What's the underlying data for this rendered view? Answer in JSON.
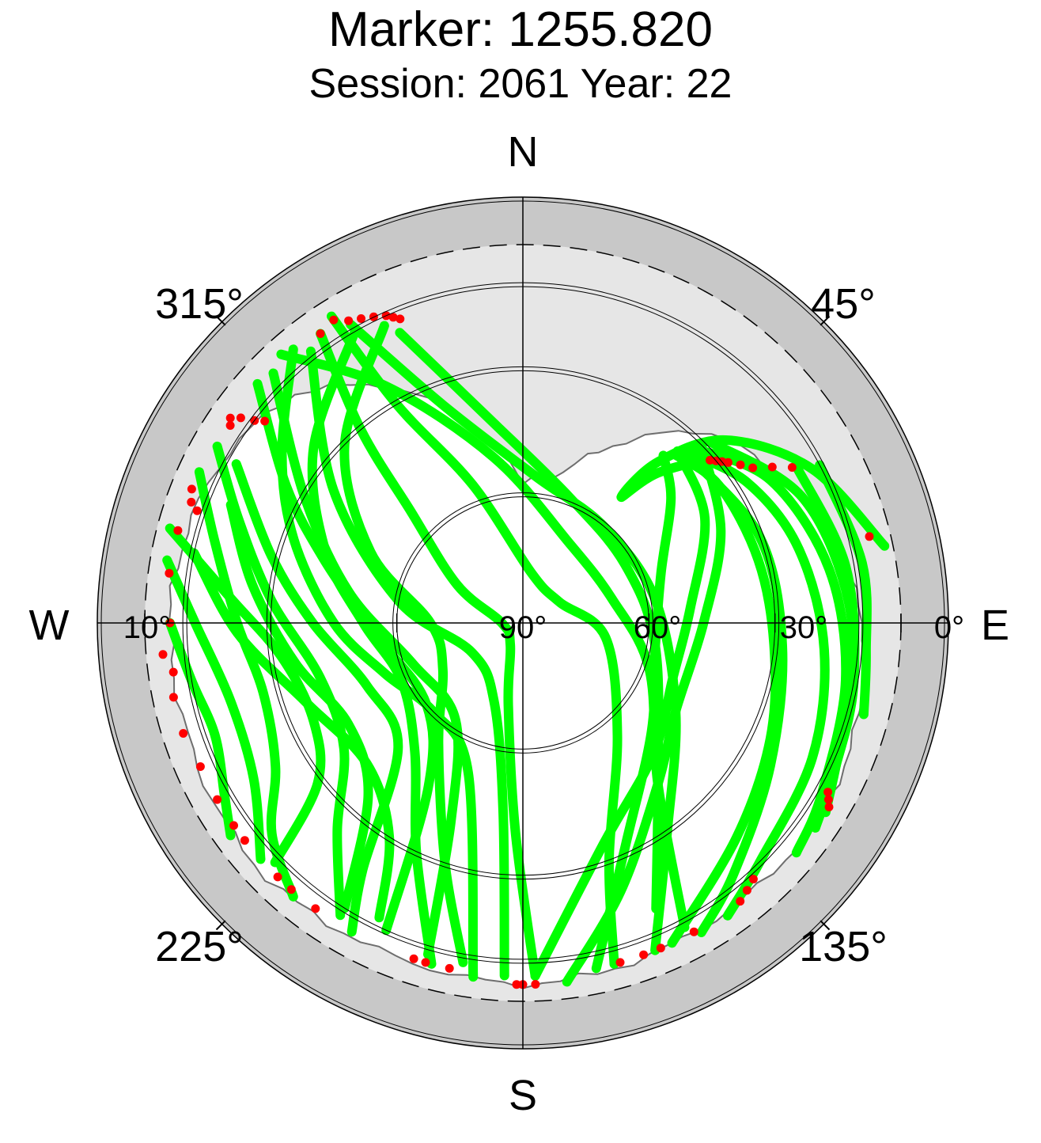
{
  "title": "Marker: 1255.820",
  "subtitle": "Session: 2061 Year: 22",
  "chart_data": {
    "type": "scatter",
    "projection": "polar skyplot (azimuth / elevation)",
    "cardinal_labels": [
      "N",
      "E",
      "S",
      "W"
    ],
    "azimuth_labels": [
      "45°",
      "135°",
      "225°",
      "315°"
    ],
    "elevation_labels": [
      "0°",
      "10°",
      "30°",
      "60°",
      "90°"
    ],
    "elevation_circles_deg": [
      10,
      30,
      60
    ],
    "elevation_cutoff_deg": 10,
    "colors": {
      "track": "#00ff00",
      "endpoint": "#ff0000",
      "obstruction_outer": "#c8c8c8",
      "obstruction_inner": "#e6e6e6",
      "mask_outline": "#6e6e6e"
    },
    "obstruction_mask": [
      [
        0,
        57
      ],
      [
        15,
        53
      ],
      [
        30,
        40
      ],
      [
        45,
        26
      ],
      [
        60,
        20
      ],
      [
        75,
        14
      ],
      [
        90,
        9
      ],
      [
        105,
        7
      ],
      [
        120,
        6
      ],
      [
        135,
        6
      ],
      [
        150,
        6
      ],
      [
        165,
        5
      ],
      [
        180,
        4
      ],
      [
        195,
        5
      ],
      [
        210,
        5
      ],
      [
        225,
        4
      ],
      [
        240,
        5
      ],
      [
        255,
        6
      ],
      [
        270,
        6
      ],
      [
        285,
        7
      ],
      [
        300,
        9
      ],
      [
        315,
        13
      ],
      [
        330,
        25
      ],
      [
        345,
        40
      ],
      [
        360,
        57
      ]
    ],
    "series": [
      {
        "points": [
          [
            78,
            2
          ],
          [
            62,
            12
          ],
          [
            48,
            25
          ],
          [
            40,
            40
          ],
          [
            38,
            52
          ],
          [
            42,
            42
          ],
          [
            50,
            28
          ]
        ]
      },
      {
        "points": [
          [
            42,
            35
          ],
          [
            60,
            40
          ],
          [
            85,
            50
          ],
          [
            110,
            52
          ],
          [
            135,
            46
          ],
          [
            160,
            34
          ],
          [
            178,
            6
          ]
        ]
      },
      {
        "points": [
          [
            40,
            38
          ],
          [
            50,
            44
          ],
          [
            70,
            55
          ],
          [
            100,
            58
          ],
          [
            130,
            50
          ],
          [
            155,
            32
          ],
          [
            168,
            6
          ]
        ]
      },
      {
        "points": [
          [
            45,
            30
          ],
          [
            65,
            38
          ],
          [
            90,
            47
          ],
          [
            120,
            48
          ],
          [
            140,
            40
          ],
          [
            160,
            22
          ],
          [
            173,
            4
          ]
        ]
      },
      {
        "points": [
          [
            42,
            36
          ],
          [
            55,
            33
          ],
          [
            75,
            32
          ],
          [
            95,
            30
          ],
          [
            115,
            25
          ],
          [
            135,
            18
          ],
          [
            155,
            6
          ]
        ]
      },
      {
        "points": [
          [
            43,
            34
          ],
          [
            58,
            27
          ],
          [
            75,
            22
          ],
          [
            95,
            18
          ],
          [
            115,
            14
          ],
          [
            135,
            10
          ],
          [
            145,
            5
          ]
        ]
      },
      {
        "points": [
          [
            44,
            32
          ],
          [
            60,
            22
          ],
          [
            80,
            16
          ],
          [
            100,
            12
          ],
          [
            120,
            8
          ],
          [
            130,
            5
          ]
        ]
      },
      {
        "points": [
          [
            60,
            15
          ],
          [
            80,
            12
          ],
          [
            100,
            10
          ],
          [
            115,
            8
          ],
          [
            125,
            5
          ]
        ]
      },
      {
        "points": [
          [
            62,
            10
          ],
          [
            80,
            8
          ],
          [
            95,
            8
          ],
          [
            105,
            6
          ]
        ]
      },
      {
        "points": [
          [
            320,
            5
          ],
          [
            305,
            20
          ],
          [
            290,
            32
          ],
          [
            270,
            45
          ],
          [
            250,
            55
          ],
          [
            225,
            60
          ],
          [
            200,
            52
          ],
          [
            188,
            5
          ]
        ]
      },
      {
        "points": [
          [
            335,
            12
          ],
          [
            315,
            30
          ],
          [
            295,
            50
          ],
          [
            270,
            68
          ],
          [
            240,
            68
          ],
          [
            215,
            55
          ],
          [
            198,
            30
          ],
          [
            190,
            8
          ]
        ]
      },
      {
        "points": [
          [
            330,
            10
          ],
          [
            310,
            25
          ],
          [
            290,
            40
          ],
          [
            270,
            52
          ],
          [
            245,
            58
          ],
          [
            220,
            50
          ],
          [
            205,
            30
          ],
          [
            195,
            6
          ]
        ]
      },
      {
        "points": [
          [
            300,
            6
          ],
          [
            290,
            18
          ],
          [
            275,
            30
          ],
          [
            255,
            40
          ],
          [
            235,
            38
          ],
          [
            222,
            24
          ],
          [
            212,
            8
          ]
        ]
      },
      {
        "points": [
          [
            295,
            5
          ],
          [
            285,
            14
          ],
          [
            270,
            22
          ],
          [
            255,
            26
          ],
          [
            240,
            22
          ],
          [
            230,
            12
          ],
          [
            220,
            5
          ]
        ]
      },
      {
        "points": [
          [
            280,
            4
          ],
          [
            270,
            12
          ],
          [
            255,
            18
          ],
          [
            240,
            16
          ],
          [
            228,
            6
          ]
        ]
      },
      {
        "points": [
          [
            270,
            6
          ],
          [
            260,
            10
          ],
          [
            250,
            12
          ],
          [
            240,
            8
          ],
          [
            234,
            4
          ]
        ]
      },
      {
        "points": [
          [
            325,
            6
          ],
          [
            320,
            30
          ],
          [
            315,
            52
          ],
          [
            300,
            72
          ],
          [
            270,
            85
          ],
          [
            210,
            84
          ],
          [
            190,
            70
          ],
          [
            182,
            40
          ],
          [
            178,
            6
          ]
        ]
      },
      {
        "points": [
          [
            328,
            4
          ],
          [
            330,
            30
          ],
          [
            340,
            55
          ],
          [
            10,
            78
          ],
          [
            60,
            80
          ],
          [
            100,
            70
          ],
          [
            140,
            55
          ],
          [
            160,
            30
          ],
          [
            165,
            6
          ]
        ]
      },
      {
        "points": [
          [
            322,
            8
          ],
          [
            305,
            35
          ],
          [
            280,
            60
          ],
          [
            240,
            76
          ],
          [
            200,
            70
          ],
          [
            186,
            45
          ],
          [
            183,
            6
          ]
        ]
      },
      {
        "points": [
          [
            315,
            6
          ],
          [
            300,
            30
          ],
          [
            280,
            48
          ],
          [
            250,
            62
          ],
          [
            215,
            62
          ],
          [
            200,
            40
          ],
          [
            196,
            8
          ]
        ]
      },
      {
        "points": [
          [
            318,
            4
          ],
          [
            330,
            25
          ],
          [
            350,
            50
          ],
          [
            30,
            68
          ],
          [
            75,
            68
          ],
          [
            110,
            58
          ],
          [
            140,
            40
          ],
          [
            152,
            8
          ]
        ]
      },
      {
        "points": [
          [
            312,
            5
          ],
          [
            300,
            25
          ],
          [
            288,
            40
          ],
          [
            265,
            55
          ],
          [
            230,
            60
          ],
          [
            210,
            45
          ],
          [
            204,
            10
          ]
        ]
      },
      {
        "points": [
          [
            282,
            10
          ],
          [
            268,
            22
          ],
          [
            250,
            35
          ],
          [
            228,
            40
          ],
          [
            212,
            30
          ],
          [
            206,
            12
          ]
        ]
      },
      {
        "points": [
          [
            292,
            15
          ],
          [
            278,
            25
          ],
          [
            260,
            35
          ],
          [
            240,
            42
          ],
          [
            222,
            35
          ],
          [
            212,
            10
          ]
        ]
      },
      {
        "points": [
          [
            299,
            12
          ],
          [
            285,
            28
          ],
          [
            270,
            40
          ],
          [
            248,
            50
          ],
          [
            225,
            48
          ],
          [
            213,
            20
          ],
          [
            209,
            6
          ]
        ]
      },
      {
        "points": [
          [
            330,
            8
          ],
          [
            340,
            35
          ],
          [
            5,
            55
          ],
          [
            40,
            60
          ],
          [
            80,
            58
          ],
          [
            120,
            48
          ],
          [
            145,
            30
          ],
          [
            158,
            6
          ]
        ]
      },
      {
        "points": [
          [
            337,
            15
          ],
          [
            350,
            40
          ],
          [
            20,
            58
          ],
          [
            60,
            62
          ],
          [
            100,
            58
          ],
          [
            140,
            40
          ],
          [
            155,
            15
          ]
        ]
      },
      {
        "points": [
          [
            285,
            3
          ],
          [
            275,
            20
          ],
          [
            262,
            32
          ],
          [
            245,
            35
          ],
          [
            232,
            28
          ],
          [
            226,
            8
          ]
        ]
      },
      {
        "points": [
          [
            45,
            34
          ],
          [
            70,
            30
          ],
          [
            95,
            28
          ],
          [
            120,
            22
          ],
          [
            140,
            12
          ],
          [
            150,
            5
          ]
        ]
      },
      {
        "points": [
          [
            46,
            28
          ],
          [
            66,
            17
          ],
          [
            88,
            12
          ],
          [
            108,
            10
          ],
          [
            122,
            5
          ]
        ]
      }
    ],
    "endpoints": [
      [
        325,
        6
      ],
      [
        328,
        5
      ],
      [
        330,
        7
      ],
      [
        332,
        8
      ],
      [
        334,
        9
      ],
      [
        336,
        10
      ],
      [
        337,
        11
      ],
      [
        338,
        12
      ],
      [
        305,
        5
      ],
      [
        304,
        6
      ],
      [
        306,
        7
      ],
      [
        307,
        10
      ],
      [
        308,
        12
      ],
      [
        292,
        5
      ],
      [
        290,
        6
      ],
      [
        289,
        8
      ],
      [
        285,
        5
      ],
      [
        278,
        5
      ],
      [
        270,
        6
      ],
      [
        265,
        4
      ],
      [
        262,
        6
      ],
      [
        258,
        5
      ],
      [
        252,
        5
      ],
      [
        246,
        6
      ],
      [
        240,
        6
      ],
      [
        235,
        6
      ],
      [
        232,
        6
      ],
      [
        224,
        6
      ],
      [
        221,
        6
      ],
      [
        216,
        6
      ],
      [
        198,
        6
      ],
      [
        196,
        6
      ],
      [
        192,
        6
      ],
      [
        181,
        4
      ],
      [
        180,
        4
      ],
      [
        178,
        4
      ],
      [
        164,
        6
      ],
      [
        160,
        6
      ],
      [
        157,
        6
      ],
      [
        151,
        6
      ],
      [
        142,
        6
      ],
      [
        140,
        7
      ],
      [
        138,
        8
      ],
      [
        121,
        5
      ],
      [
        120,
        6
      ],
      [
        119,
        7
      ],
      [
        76,
        5
      ],
      [
        50,
        30
      ],
      [
        49,
        31
      ],
      [
        51,
        29
      ],
      [
        52,
        28
      ],
      [
        54,
        26
      ],
      [
        56,
        24
      ],
      [
        58,
        20
      ],
      [
        60,
        16
      ]
    ]
  }
}
